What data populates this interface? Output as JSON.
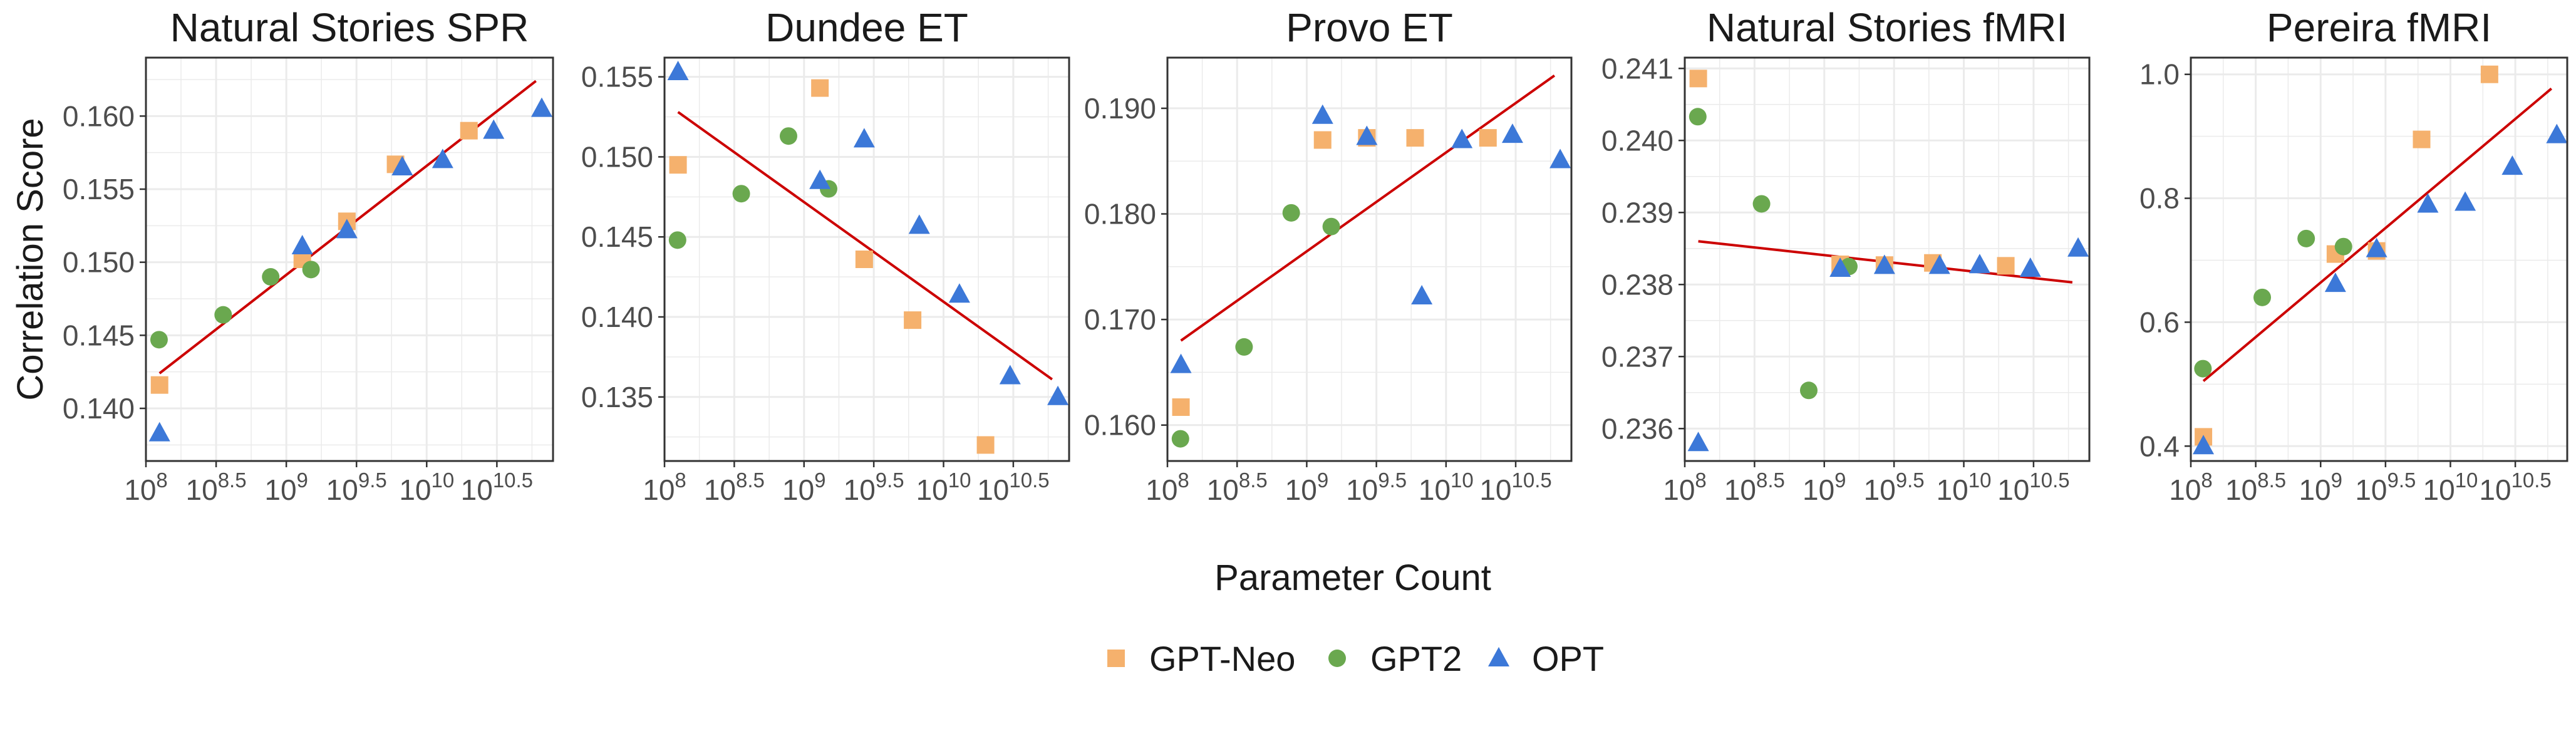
{
  "figure": {
    "y_axis_title": "Correlation Score",
    "x_axis_title": "Parameter Count",
    "legend": [
      {
        "name": "GPT-Neo",
        "color": "#F5B16D",
        "shape": "square"
      },
      {
        "name": "GPT2",
        "color": "#6AA84F",
        "shape": "circle"
      },
      {
        "name": "OPT",
        "color": "#3C78D8",
        "shape": "triangle"
      }
    ],
    "x_ticks": [
      {
        "base": "10",
        "exp": "8"
      },
      {
        "base": "10",
        "exp": "8.5"
      },
      {
        "base": "10",
        "exp": "9"
      },
      {
        "base": "10",
        "exp": "9.5"
      },
      {
        "base": "10",
        "exp": "10"
      },
      {
        "base": "10",
        "exp": "10.5"
      }
    ],
    "colors": {
      "grid": "#EBEBEB",
      "fit_line": "#CC0000",
      "panel_border": "#333333"
    }
  },
  "chart_data": [
    {
      "type": "scatter",
      "title": "Natural Stories SPR",
      "x_scale": "log10",
      "xlim": [
        100000000,
        79432823472
      ],
      "x_tick_values": [
        100000000,
        316227766,
        1000000000,
        3162277660,
        10000000000,
        31622776600
      ],
      "ylim": [
        0.1364,
        0.164
      ],
      "y_ticks": [
        "0.140",
        "0.145",
        "0.150",
        "0.155",
        "0.160"
      ],
      "y_tick_values": [
        0.14,
        0.145,
        0.15,
        0.155,
        0.16
      ],
      "fit_line": {
        "x": [
          125000000,
          60000000000
        ],
        "y": [
          0.1424,
          0.1624
        ]
      },
      "series": [
        {
          "name": "GPT-Neo",
          "x": [
            125000000,
            1300000000,
            2700000000,
            6000000000,
            20000000000
          ],
          "y": [
            0.1416,
            0.1502,
            0.1528,
            0.1567,
            0.159
          ]
        },
        {
          "name": "GPT2",
          "x": [
            124000000,
            355000000,
            774000000,
            1500000000
          ],
          "y": [
            0.1447,
            0.1464,
            0.149,
            0.1495
          ]
        },
        {
          "name": "OPT",
          "x": [
            125000000,
            1300000000,
            2700000000,
            6700000000,
            13000000000,
            30000000000,
            66000000000
          ],
          "y": [
            0.1383,
            0.1511,
            0.1522,
            0.1565,
            0.157,
            0.159,
            0.1605
          ]
        }
      ]
    },
    {
      "type": "scatter",
      "title": "Dundee ET",
      "x_scale": "log10",
      "xlim": [
        100000000,
        79432823472
      ],
      "x_tick_values": [
        100000000,
        316227766,
        1000000000,
        3162277660,
        10000000000,
        31622776600
      ],
      "ylim": [
        0.131,
        0.1562
      ],
      "y_ticks": [
        "0.135",
        "0.140",
        "0.145",
        "0.150",
        "0.155"
      ],
      "y_tick_values": [
        0.135,
        0.14,
        0.145,
        0.15,
        0.155
      ],
      "fit_line": {
        "x": [
          125000000,
          60000000000
        ],
        "y": [
          0.1528,
          0.1361
        ]
      },
      "series": [
        {
          "name": "GPT-Neo",
          "x": [
            125000000,
            1300000000,
            2700000000,
            6000000000,
            20000000000
          ],
          "y": [
            0.1495,
            0.1543,
            0.1436,
            0.1398,
            0.132
          ]
        },
        {
          "name": "GPT2",
          "x": [
            124000000,
            355000000,
            774000000,
            1500000000
          ],
          "y": [
            0.1448,
            0.1477,
            0.1513,
            0.148
          ]
        },
        {
          "name": "OPT",
          "x": [
            125000000,
            1300000000,
            2700000000,
            6700000000,
            13000000000,
            30000000000,
            66000000000
          ],
          "y": [
            0.1553,
            0.1485,
            0.1511,
            0.1457,
            0.1414,
            0.1363,
            0.135
          ]
        }
      ]
    },
    {
      "type": "scatter",
      "title": "Provo ET",
      "x_scale": "log10",
      "xlim": [
        100000000,
        79432823472
      ],
      "x_tick_values": [
        100000000,
        316227766,
        1000000000,
        3162277660,
        10000000000,
        31622776600
      ],
      "ylim": [
        0.1566,
        0.1948
      ],
      "y_ticks": [
        "0.160",
        "0.170",
        "0.180",
        "0.190"
      ],
      "y_tick_values": [
        0.16,
        0.17,
        0.18,
        0.19
      ],
      "fit_line": {
        "x": [
          125000000,
          60000000000
        ],
        "y": [
          0.168,
          0.1931
        ]
      },
      "series": [
        {
          "name": "GPT-Neo",
          "x": [
            125000000,
            1300000000,
            2700000000,
            6000000000,
            20000000000
          ],
          "y": [
            0.1617,
            0.187,
            0.1872,
            0.1872,
            0.1872
          ]
        },
        {
          "name": "GPT2",
          "x": [
            124000000,
            355000000,
            774000000,
            1500000000
          ],
          "y": [
            0.1587,
            0.1674,
            0.1801,
            0.1788
          ]
        },
        {
          "name": "OPT",
          "x": [
            125000000,
            1300000000,
            2700000000,
            6700000000,
            13000000000,
            30000000000,
            66000000000
          ],
          "y": [
            0.1657,
            0.1893,
            0.1873,
            0.1722,
            0.187,
            0.1875,
            0.1851
          ]
        }
      ]
    },
    {
      "type": "scatter",
      "title": "Natural Stories fMRI",
      "x_scale": "log10",
      "xlim": [
        100000000,
        79432823472
      ],
      "x_tick_values": [
        100000000,
        316227766,
        1000000000,
        3162277660,
        10000000000,
        31622776600
      ],
      "ylim": [
        0.23555,
        0.24115
      ],
      "y_ticks": [
        "0.236",
        "0.237",
        "0.238",
        "0.239",
        "0.240",
        "0.241"
      ],
      "y_tick_values": [
        0.236,
        0.237,
        0.238,
        0.239,
        0.24,
        0.241
      ],
      "fit_line": {
        "x": [
          125000000,
          60000000000
        ],
        "y": [
          0.2386,
          0.23803
        ]
      },
      "series": [
        {
          "name": "GPT-Neo",
          "x": [
            125000000,
            1300000000,
            2700000000,
            6000000000,
            20000000000
          ],
          "y": [
            0.24086,
            0.23828,
            0.23827,
            0.2383,
            0.23826
          ]
        },
        {
          "name": "GPT2",
          "x": [
            124000000,
            355000000,
            774000000,
            1500000000
          ],
          "y": [
            0.24033,
            0.23912,
            0.23653,
            0.23825
          ]
        },
        {
          "name": "OPT",
          "x": [
            125000000,
            1300000000,
            2700000000,
            6700000000,
            13000000000,
            30000000000,
            66000000000
          ],
          "y": [
            0.2358,
            0.23822,
            0.23826,
            0.23826,
            0.23827,
            0.23822,
            0.2385
          ]
        }
      ]
    },
    {
      "type": "scatter",
      "title": "Pereira fMRI",
      "x_scale": "log10",
      "xlim": [
        100000000,
        79432823472
      ],
      "x_tick_values": [
        100000000,
        316227766,
        1000000000,
        3162277660,
        10000000000,
        31622776600
      ],
      "ylim": [
        0.376,
        1.027
      ],
      "y_ticks": [
        "0.4",
        "0.6",
        "0.8",
        "1.0"
      ],
      "y_tick_values": [
        0.4,
        0.6,
        0.8,
        1.0
      ],
      "fit_line": {
        "x": [
          125000000,
          60000000000
        ],
        "y": [
          0.505,
          0.977
        ]
      },
      "series": [
        {
          "name": "GPT-Neo",
          "x": [
            125000000,
            1300000000,
            2700000000,
            6000000000,
            20000000000
          ],
          "y": [
            0.415,
            0.71,
            0.715,
            0.895,
            1.0
          ]
        },
        {
          "name": "GPT2",
          "x": [
            124000000,
            355000000,
            774000000,
            1500000000
          ],
          "y": [
            0.525,
            0.64,
            0.735,
            0.722
          ]
        },
        {
          "name": "OPT",
          "x": [
            125000000,
            1300000000,
            2700000000,
            6700000000,
            13000000000,
            30000000000,
            66000000000
          ],
          "y": [
            0.4,
            0.662,
            0.718,
            0.79,
            0.793,
            0.851,
            0.902
          ]
        }
      ]
    }
  ]
}
